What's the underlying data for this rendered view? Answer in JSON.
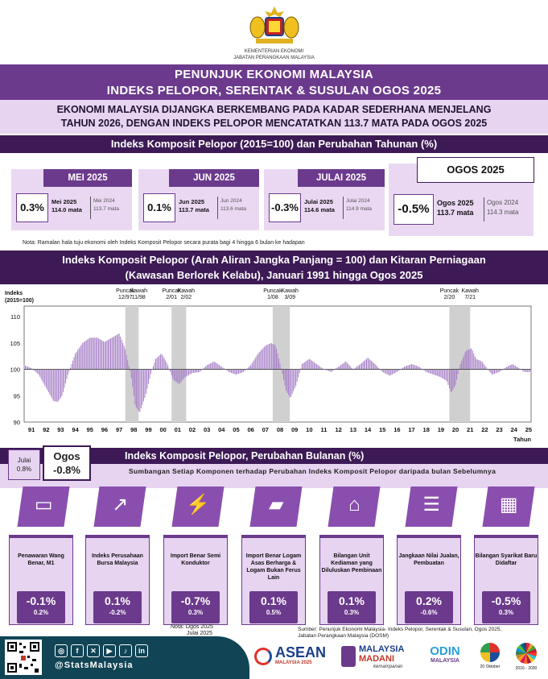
{
  "header": {
    "ministry_line1": "KEMENTERIAN EKONOMI",
    "ministry_line2": "JABATAN PERANGKAAN MALAYSIA"
  },
  "title": {
    "line1": "PENUNJUK EKONOMI MALAYSIA",
    "line2": "INDEKS PELOPOR, SERENTAK & SUSULAN OGOS 2025"
  },
  "headline": {
    "line1": "EKONOMI MALAYSIA DIJANGKA BERKEMBANG PADA KADAR SEDERHANA MENJELANG",
    "line2": "TAHUN 2026, DENGAN INDEKS PELOPOR MENCATATKAN 113.7 MATA PADA OGOS 2025"
  },
  "section1": {
    "title": "Indeks Komposit Pelopor (2015=100) dan Perubahan Tahunan (%)"
  },
  "months": [
    {
      "tab": "MEI 2025",
      "change": "0.3%",
      "cur_label": "Mei 2025",
      "cur_val": "114.0 mata",
      "prev_label": "Mei 2024",
      "prev_val": "113.7 mata"
    },
    {
      "tab": "JUN 2025",
      "change": "0.1%",
      "cur_label": "Jun 2025",
      "cur_val": "113.7 mata",
      "prev_label": "Jun 2024",
      "prev_val": "113.6 mata"
    },
    {
      "tab": "JULAI 2025",
      "change": "-0.3%",
      "cur_label": "Julai 2025",
      "cur_val": "114.6 mata",
      "prev_label": "Julai 2024",
      "prev_val": "114.9 mata"
    },
    {
      "tab": "OGOS 2025",
      "change": "-0.5%",
      "cur_label": "Ogos 2025",
      "cur_val": "113.7 mata",
      "prev_label": "Ogos 2024",
      "prev_val": "114.3 mata"
    }
  ],
  "note1": "Nota: Ramalan hala tuju ekonomi oleh Indeks Komposit Pelopor secara purata bagi 4 hingga 6 bulan ke hadapan",
  "section2": {
    "line1": "Indeks Komposit Pelopor (Arah Aliran Jangka Panjang = 100) dan Kitaran Perniagaan",
    "line2": "(Kawasan Berlorek Kelabu), Januari 1991 hingga Ogos 2025"
  },
  "chart_data": {
    "type": "bar",
    "ylabel": "Indeks (2015=100)",
    "xlabel": "Tahun",
    "ylim": [
      90,
      112
    ],
    "yticks": [
      90,
      95,
      100,
      105,
      110
    ],
    "baseline": 100,
    "x_ticks": [
      "91",
      "92",
      "93",
      "94",
      "95",
      "96",
      "97",
      "98",
      "99",
      "00",
      "01",
      "02",
      "03",
      "04",
      "05",
      "06",
      "07",
      "08",
      "09",
      "10",
      "11",
      "12",
      "13",
      "14",
      "15",
      "16",
      "17",
      "18",
      "19",
      "20",
      "21",
      "22",
      "23",
      "24",
      "25"
    ],
    "x_start": 1991,
    "x_end": 2025.67,
    "series": [
      {
        "values_by_year": [
          [
            1991.0,
            100.8
          ],
          [
            1991.5,
            100.2
          ],
          [
            1992.0,
            99.0
          ],
          [
            1992.5,
            96.5
          ],
          [
            1993.0,
            94.0
          ],
          [
            1993.3,
            93.8
          ],
          [
            1993.6,
            95.0
          ],
          [
            1994.0,
            99.0
          ],
          [
            1994.5,
            103.0
          ],
          [
            1995.0,
            105.0
          ],
          [
            1995.5,
            106.0
          ],
          [
            1996.0,
            106.0
          ],
          [
            1996.5,
            105.2
          ],
          [
            1997.0,
            106.0
          ],
          [
            1997.5,
            106.8
          ],
          [
            1997.9,
            104.0
          ],
          [
            1998.3,
            99.0
          ],
          [
            1998.6,
            93.0
          ],
          [
            1998.9,
            91.8
          ],
          [
            1999.3,
            95.0
          ],
          [
            1999.7,
            99.5
          ],
          [
            2000.0,
            102.0
          ],
          [
            2000.4,
            103.0
          ],
          [
            2000.8,
            101.0
          ],
          [
            2001.2,
            98.0
          ],
          [
            2001.6,
            97.2
          ],
          [
            2002.0,
            98.5
          ],
          [
            2002.5,
            99.3
          ],
          [
            2003.0,
            99.5
          ],
          [
            2003.5,
            100.8
          ],
          [
            2004.0,
            101.5
          ],
          [
            2004.5,
            100.5
          ],
          [
            2005.0,
            99.5
          ],
          [
            2005.5,
            99.0
          ],
          [
            2006.0,
            99.5
          ],
          [
            2006.5,
            100.8
          ],
          [
            2007.0,
            103.0
          ],
          [
            2007.5,
            104.5
          ],
          [
            2007.9,
            105.0
          ],
          [
            2008.2,
            104.5
          ],
          [
            2008.6,
            100.0
          ],
          [
            2008.9,
            96.0
          ],
          [
            2009.2,
            94.5
          ],
          [
            2009.6,
            97.0
          ],
          [
            2010.0,
            101.0
          ],
          [
            2010.5,
            102.0
          ],
          [
            2011.0,
            101.0
          ],
          [
            2011.5,
            100.0
          ],
          [
            2012.0,
            99.5
          ],
          [
            2012.5,
            100.5
          ],
          [
            2013.0,
            101.5
          ],
          [
            2013.5,
            100.0
          ],
          [
            2014.0,
            101.0
          ],
          [
            2014.5,
            102.2
          ],
          [
            2015.0,
            101.0
          ],
          [
            2015.5,
            99.5
          ],
          [
            2016.0,
            98.8
          ],
          [
            2016.5,
            99.5
          ],
          [
            2017.0,
            100.5
          ],
          [
            2017.5,
            101.0
          ],
          [
            2018.0,
            100.5
          ],
          [
            2018.5,
            99.5
          ],
          [
            2019.0,
            99.0
          ],
          [
            2019.5,
            98.5
          ],
          [
            2019.9,
            97.8
          ],
          [
            2020.2,
            95.5
          ],
          [
            2020.5,
            97.0
          ],
          [
            2020.8,
            100.8
          ],
          [
            2021.2,
            103.5
          ],
          [
            2021.6,
            104.0
          ],
          [
            2021.9,
            102.0
          ],
          [
            2022.3,
            101.5
          ],
          [
            2022.7,
            100.0
          ],
          [
            2023.0,
            99.0
          ],
          [
            2023.5,
            99.5
          ],
          [
            2024.0,
            100.5
          ],
          [
            2024.4,
            101.0
          ],
          [
            2024.8,
            100.3
          ],
          [
            2025.2,
            99.5
          ],
          [
            2025.6,
            99.5
          ]
        ]
      }
    ],
    "cycles": [
      {
        "peak": "12/97",
        "trough": "11/98",
        "start": 1997.92,
        "end": 1998.83
      },
      {
        "peak": "2/01",
        "trough": "2/02",
        "start": 2001.08,
        "end": 2002.08
      },
      {
        "peak": "1/08",
        "trough": "3/09",
        "start": 2008.0,
        "end": 2009.17
      },
      {
        "peak": "2/20",
        "trough": "7/21",
        "start": 2020.08,
        "end": 2021.5
      }
    ],
    "peak_word": "Puncak",
    "trough_word": "Kawah"
  },
  "section3": {
    "title": "Indeks Komposit Pelopor, Perubahan Bulanan (%)"
  },
  "monthly": {
    "prev_label": "Julai",
    "prev_val": "0.8%",
    "cur_label": "Ogos",
    "cur_val": "-0.8%",
    "subtitle": "Sumbangan Setiap Komponen terhadap Perubahan Indeks Komposit Pelopor daripada bulan Sebelumnya"
  },
  "components": [
    {
      "label": "Penawaran Wang Benar, M1",
      "icon": "wallet-icon",
      "aug": "-0.1%",
      "jul": "0.2%"
    },
    {
      "label": "Indeks Perusahaan Bursa Malaysia",
      "icon": "stock-chart-icon",
      "aug": "0.1%",
      "jul": "-0.2%"
    },
    {
      "label": "Import Benar Semi Konduktor",
      "icon": "plug-icon",
      "aug": "-0.7%",
      "jul": "0.3%"
    },
    {
      "label": "Import Benar Logam Asas Berharga & Logam Bukan Ferus Lain",
      "icon": "metal-bar-icon",
      "aug": "0.1%",
      "jul": "0.5%"
    },
    {
      "label": "Bilangan Unit Kediaman yang Diluluskan Pembinaan",
      "icon": "house-icon",
      "aug": "0.1%",
      "jul": "0.3%"
    },
    {
      "label": "Jangkaan Nilai Jualan, Pembuatan",
      "icon": "sales-icon",
      "aug": "0.2%",
      "jul": "-0.6%"
    },
    {
      "label": "Bilangan Syarikat Baru Didaftar",
      "icon": "building-icon",
      "aug": "-0.5%",
      "jul": "0.3%"
    }
  ],
  "note2": {
    "line1": "Nota: Ogos 2025",
    "line2": "Julai 2025"
  },
  "source": {
    "line1": "Sumber: Penunjuk Ekonomi Malaysia- Indeks Pelopor, Serentak & Susulan, Ogos 2025,",
    "line2": "Jabatan Perangkaan Malaysia (DOSM)"
  },
  "footer": {
    "handle": "@StatsMalaysia",
    "social_icons": [
      "instagram-icon",
      "facebook-icon",
      "x-icon",
      "youtube-icon",
      "tiktok-icon",
      "linkedin-icon"
    ],
    "logo1_l1": "ASEAN",
    "logo1_l2": "MALAYSIA 2025",
    "logo2_l1": "MALAYSIA",
    "logo2_l2": "MADANI",
    "logo2_l3": "kemampanan",
    "logo3_l1": "ODIN",
    "logo3_l2": "MALAYSIA",
    "logo4": "20 Oktober",
    "logo5": "2016 - 2030"
  },
  "colors": {
    "purple": "#6b3a8c",
    "dark_purple": "#3d1a55",
    "lavender": "#e7d4f1",
    "bar": "#a77fc7",
    "shade": "#d0d0d0",
    "footer": "#114455"
  }
}
